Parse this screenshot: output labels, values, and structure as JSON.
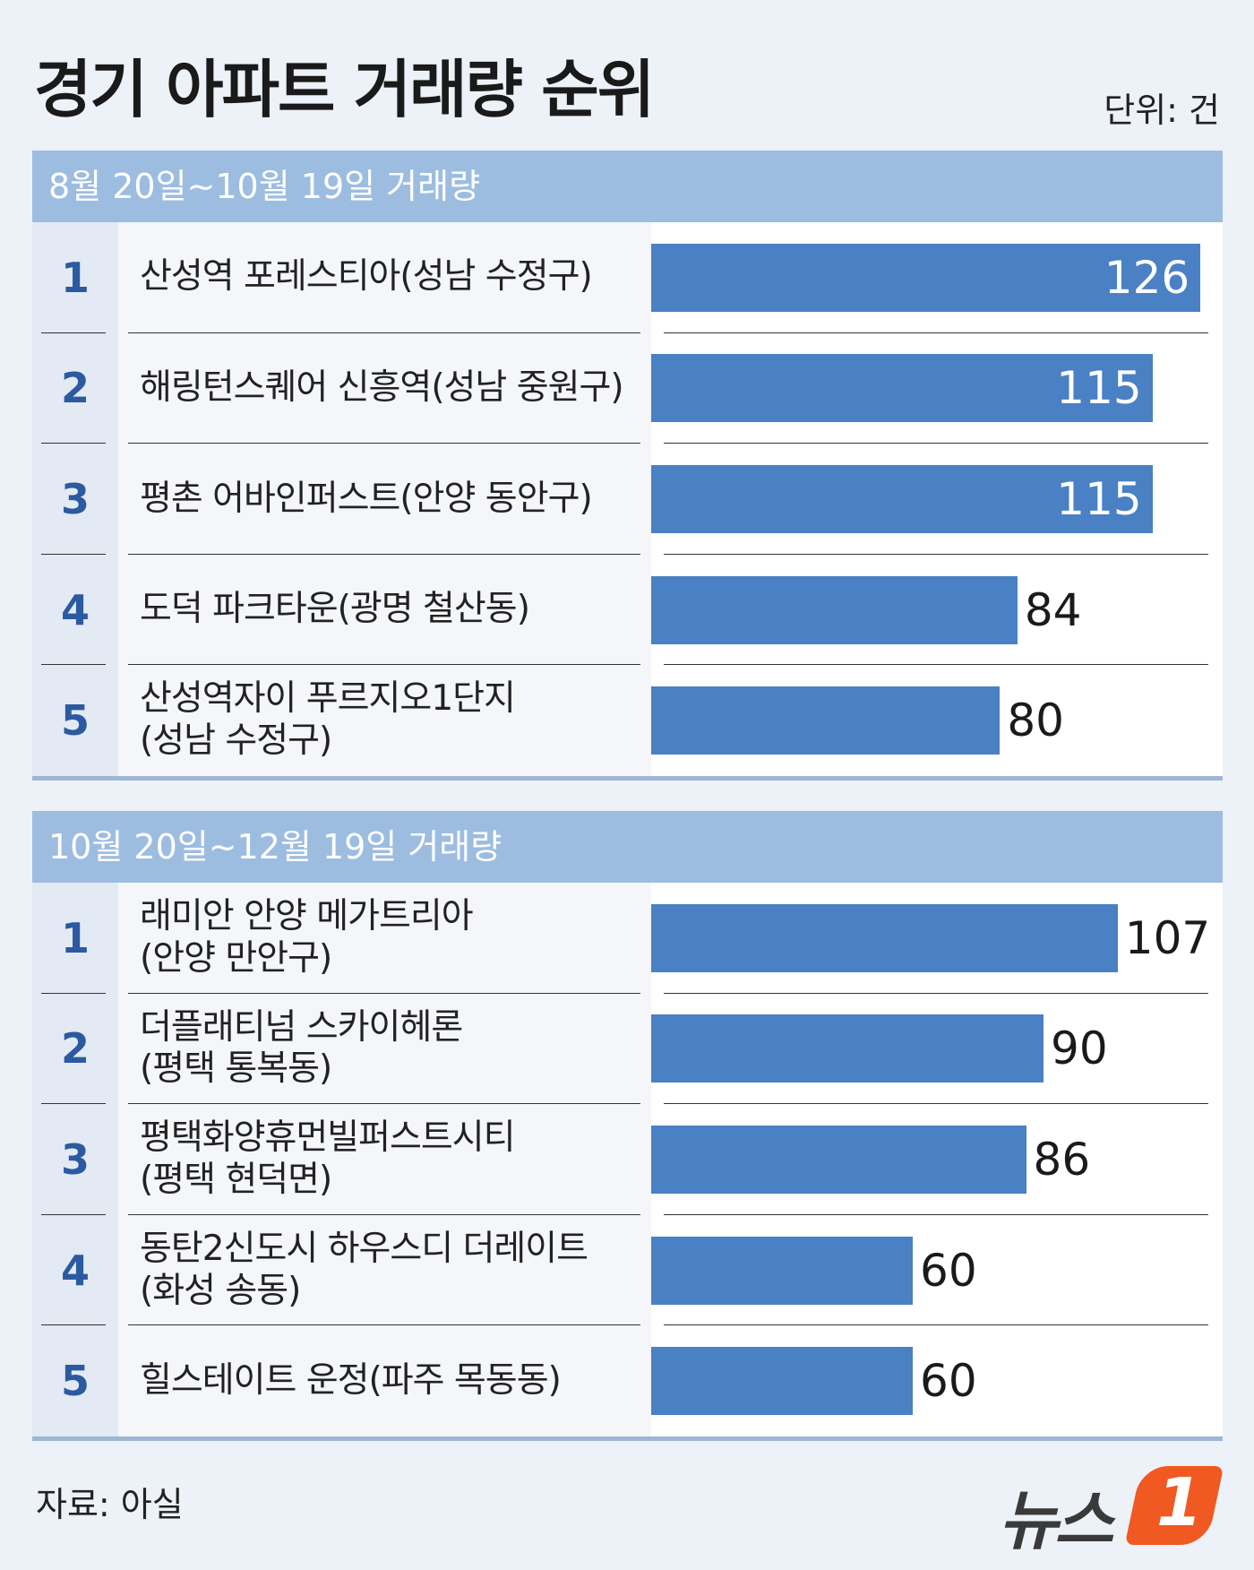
{
  "title": "경기 아파트 거래량 순위",
  "unit": "단위: 건",
  "chart_data": [
    {
      "type": "bar",
      "title": "8월 20일~10월 19일 거래량",
      "ranks": [
        1,
        2,
        3,
        4,
        5
      ],
      "categories": [
        "산성역 포레스티아(성남 수정구)",
        "해링턴스퀘어 신흥역(성남 중원구)",
        "평촌 어바인퍼스트(안양 동안구)",
        "도덕 파크타운(광명 철산동)",
        "산성역자이 푸르지오1단지\n(성남 수정구)"
      ],
      "values": [
        126,
        115,
        115,
        84,
        80
      ],
      "color": "#4a80c4"
    },
    {
      "type": "bar",
      "title": "10월 20일~12월 19일 거래량",
      "ranks": [
        1,
        2,
        3,
        4,
        5
      ],
      "categories": [
        "래미안 안양 메가트리아\n(안양 만안구)",
        "더플래티넘 스카이헤론\n(평택 통복동)",
        "평택화양휴먼빌퍼스트시티\n(평택 현덕면)",
        "동탄2신도시 하우스디 더레이트\n(화성 송동)",
        "힐스테이트 운정(파주 목동동)"
      ],
      "values": [
        107,
        90,
        86,
        60,
        60
      ],
      "color": "#4a80c4"
    }
  ],
  "source": "자료: 아실",
  "logo": {
    "name": "뉴스",
    "number": "1"
  }
}
